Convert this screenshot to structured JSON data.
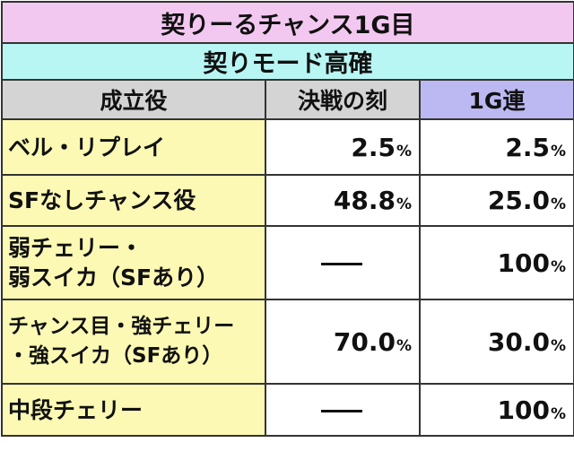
{
  "title": "契りーるチャンス1G目",
  "mode": "契りモード高確",
  "headers": {
    "role": "成立役",
    "battle": "決戦の刻",
    "consecutive": "1G連"
  },
  "rows": [
    {
      "label_lines": [
        "ベル・リプレイ"
      ],
      "battle": "2.5",
      "battle_pct": "%",
      "consecutive": "2.5",
      "consecutive_pct": "%"
    },
    {
      "label_lines": [
        "SFなしチャンス役"
      ],
      "battle": "48.8",
      "battle_pct": "%",
      "consecutive": "25.0",
      "consecutive_pct": "%"
    },
    {
      "label_lines": [
        "弱チェリー・",
        "弱スイカ（SFあり）"
      ],
      "battle": "—",
      "battle_pct": "",
      "consecutive": "100",
      "consecutive_pct": "%"
    },
    {
      "label_lines": [
        "チャンス目・強チェリー",
        "・強スイカ（SFあり）"
      ],
      "battle": "70.0",
      "battle_pct": "%",
      "consecutive": "30.0",
      "consecutive_pct": "%"
    },
    {
      "label_lines": [
        "中段チェリー"
      ],
      "battle": "—",
      "battle_pct": "",
      "consecutive": "100",
      "consecutive_pct": "%"
    }
  ]
}
